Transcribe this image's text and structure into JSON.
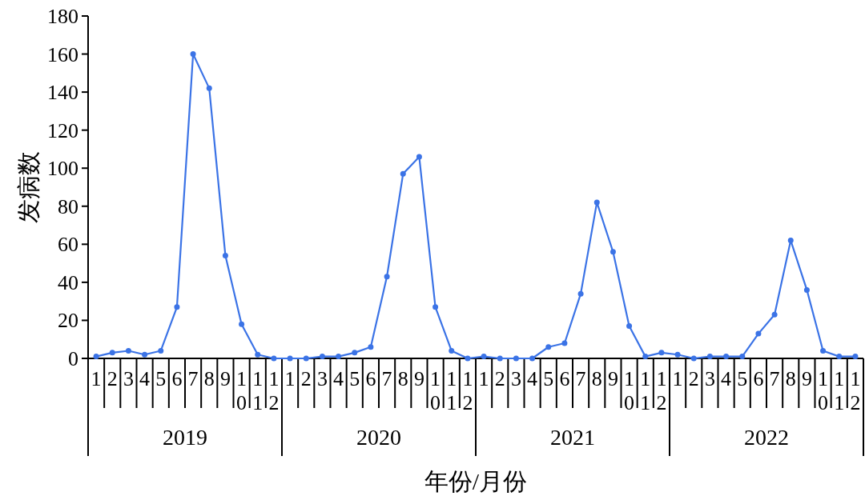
{
  "chart_data": {
    "type": "line",
    "xlabel": "年份/月份",
    "ylabel": "发病数",
    "categories": [
      "1",
      "2",
      "3",
      "4",
      "5",
      "6",
      "7",
      "8",
      "9",
      "10",
      "11",
      "12",
      "1",
      "2",
      "3",
      "4",
      "5",
      "6",
      "7",
      "8",
      "9",
      "10",
      "11",
      "12",
      "1",
      "2",
      "3",
      "4",
      "5",
      "6",
      "7",
      "8",
      "9",
      "10",
      "11",
      "12",
      "1",
      "2",
      "3",
      "4",
      "5",
      "6",
      "7",
      "8",
      "9",
      "10",
      "11",
      "12"
    ],
    "annotations": [
      "2019",
      "2020",
      "2021",
      "2022"
    ],
    "series": [
      {
        "color": "#3b73e6",
        "values": [
          1,
          3,
          4,
          2,
          4,
          27,
          160,
          142,
          54,
          18,
          2,
          0,
          0,
          0,
          1,
          1,
          3,
          6,
          43,
          97,
          106,
          27,
          4,
          0,
          1,
          0,
          0,
          0,
          6,
          8,
          34,
          82,
          56,
          17,
          1,
          3,
          2,
          0,
          1,
          1,
          1,
          13,
          23,
          62,
          36,
          4,
          1,
          1
        ]
      }
    ],
    "ylim": [
      0,
      180
    ],
    "yticks": [
      0,
      20,
      40,
      60,
      80,
      100,
      120,
      140,
      160,
      180
    ],
    "marker": "circle"
  }
}
